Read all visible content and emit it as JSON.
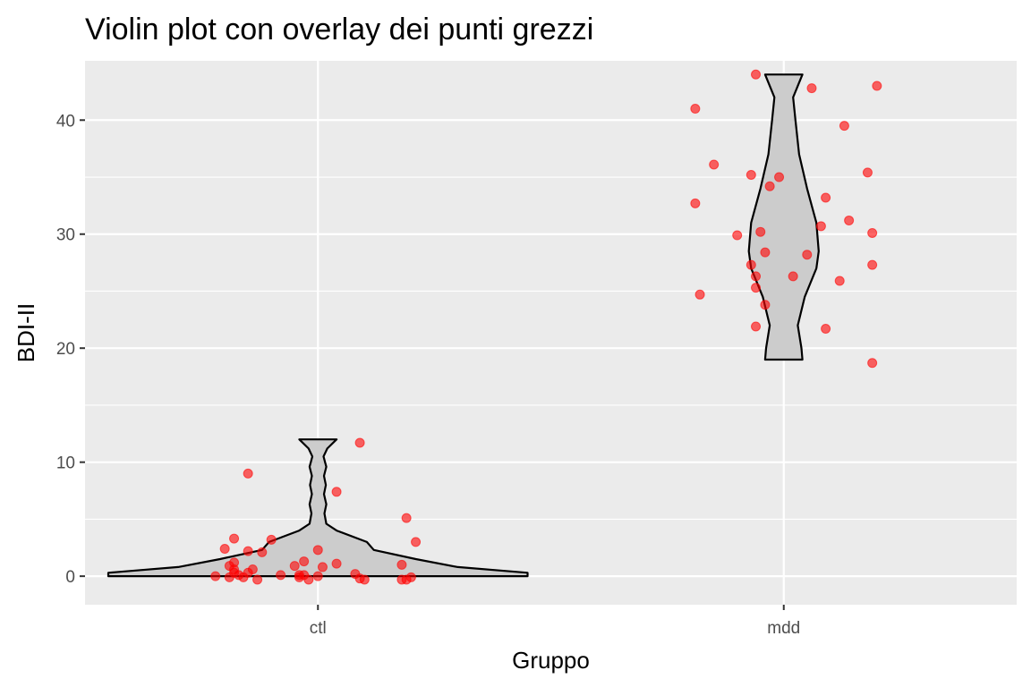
{
  "chart_data": {
    "type": "violin",
    "title": "Violin plot con overlay dei punti grezzi",
    "xlabel": "Gruppo",
    "ylabel": "BDI-II",
    "categories": [
      "ctl",
      "mdd"
    ],
    "ylim": [
      -2.5,
      45.2
    ],
    "yticks": [
      0,
      10,
      20,
      30,
      40
    ],
    "ytick_labels": [
      "0",
      "10",
      "20",
      "30",
      "40"
    ],
    "grid": true,
    "legend": "none",
    "colors": {
      "panel": "#ebebeb",
      "grid": "#ffffff",
      "violin_fill": "#cccccc",
      "violin_outline": "#000000",
      "points": "#ff0000"
    },
    "violins": [
      {
        "category": "ctl",
        "profile": [
          [
            0.0,
            0.45
          ],
          [
            0.3,
            0.45
          ],
          [
            0.8,
            0.3
          ],
          [
            1.5,
            0.21
          ],
          [
            2.3,
            0.12
          ],
          [
            3.0,
            0.105
          ],
          [
            4.0,
            0.04
          ],
          [
            4.6,
            0.018
          ],
          [
            5.5,
            0.014
          ],
          [
            6.3,
            0.018
          ],
          [
            7.2,
            0.013
          ],
          [
            8.0,
            0.017
          ],
          [
            8.8,
            0.013
          ],
          [
            9.6,
            0.018
          ],
          [
            10.5,
            0.012
          ],
          [
            11.2,
            0.02
          ],
          [
            12.0,
            0.04
          ]
        ]
      },
      {
        "category": "mdd",
        "profile": [
          [
            19.0,
            0.04
          ],
          [
            20.0,
            0.038
          ],
          [
            22.0,
            0.03
          ],
          [
            24.5,
            0.045
          ],
          [
            27.0,
            0.07
          ],
          [
            28.5,
            0.075
          ],
          [
            31.0,
            0.07
          ],
          [
            34.0,
            0.05
          ],
          [
            37.0,
            0.033
          ],
          [
            40.0,
            0.025
          ],
          [
            42.0,
            0.02
          ],
          [
            44.0,
            0.04
          ]
        ]
      }
    ],
    "points": [
      {
        "category": "ctl",
        "x": [
          -0.22,
          -0.15,
          -0.04,
          0.09,
          -0.15,
          0.21,
          -0.18,
          -0.2,
          -0.1,
          -0.15,
          0.0,
          -0.03,
          -0.18,
          0.04,
          -0.14,
          -0.05,
          -0.19,
          0.01,
          0.18,
          -0.17,
          -0.18,
          0.0,
          -0.08,
          -0.03,
          0.04,
          -0.12,
          -0.19,
          -0.16,
          0.09,
          -0.02,
          0.19,
          -0.18,
          0.08,
          0.1,
          0.18,
          0.19,
          0.2,
          -0.13,
          -0.04
        ],
        "y": [
          0.0,
          0.3,
          0.1,
          11.7,
          9.0,
          3.0,
          3.3,
          2.4,
          3.2,
          2.2,
          2.3,
          1.3,
          1.2,
          1.1,
          0.6,
          0.9,
          0.9,
          0.8,
          1.0,
          0.1,
          0.3,
          0.0,
          0.1,
          0.1,
          7.4,
          2.1,
          -0.1,
          -0.1,
          -0.2,
          -0.3,
          5.1,
          0.6,
          0.2,
          -0.3,
          -0.3,
          -0.3,
          -0.1,
          -0.3,
          -0.1
        ]
      },
      {
        "category": "mdd",
        "x": [
          -0.19,
          -0.15,
          -0.19,
          -0.18,
          -0.06,
          -0.07,
          -0.03,
          -0.05,
          -0.04,
          -0.06,
          -0.06,
          -0.01,
          -0.06,
          0.02,
          0.06,
          0.09,
          0.08,
          0.09,
          0.13,
          0.14,
          0.12,
          0.18,
          0.19,
          0.19,
          0.19,
          0.2,
          -0.1,
          -0.07,
          0.05,
          -0.04
        ],
        "y": [
          41.0,
          36.1,
          32.7,
          24.7,
          44.0,
          35.2,
          34.2,
          30.2,
          28.4,
          26.3,
          21.9,
          35.0,
          25.3,
          26.3,
          42.8,
          33.2,
          30.7,
          21.7,
          39.5,
          31.2,
          25.9,
          35.4,
          30.1,
          27.3,
          18.7,
          43.0,
          29.9,
          27.3,
          28.2,
          23.8
        ]
      }
    ]
  }
}
